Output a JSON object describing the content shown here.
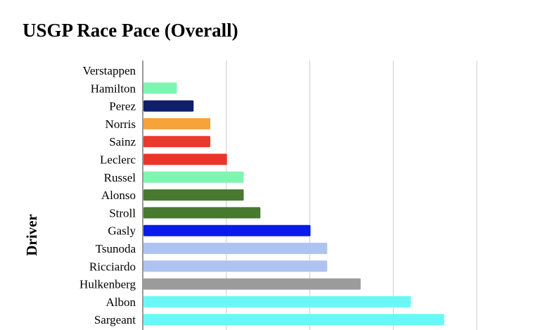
{
  "chart_data": {
    "type": "bar",
    "orientation": "horizontal",
    "title": "USGP Race Pace (Overall)",
    "ylabel": "Driver",
    "xlabel": "",
    "grid": true,
    "xlim": [
      0,
      2.5
    ],
    "categories": [
      "Verstappen",
      "Hamilton",
      "Perez",
      "Norris",
      "Sainz",
      "Leclerc",
      "Russel",
      "Alonso",
      "Stroll",
      "Gasly",
      "Tsunoda",
      "Ricciardo",
      "Hulkenberg",
      "Albon",
      "Sargeant"
    ],
    "values": [
      0,
      0.2,
      0.3,
      0.4,
      0.4,
      0.5,
      0.6,
      0.6,
      0.7,
      1.0,
      1.1,
      1.1,
      1.3,
      1.6,
      1.8
    ],
    "colors": [
      "#ffffff",
      "#7ff5b2",
      "#0f1f6b",
      "#f5a33a",
      "#ea3a2b",
      "#e8372a",
      "#7ff5b2",
      "#477a2e",
      "#477a2e",
      "#0a1be8",
      "#aec3f0",
      "#aec3f0",
      "#9b9b9b",
      "#6cf7f7",
      "#6cf7f7"
    ]
  }
}
